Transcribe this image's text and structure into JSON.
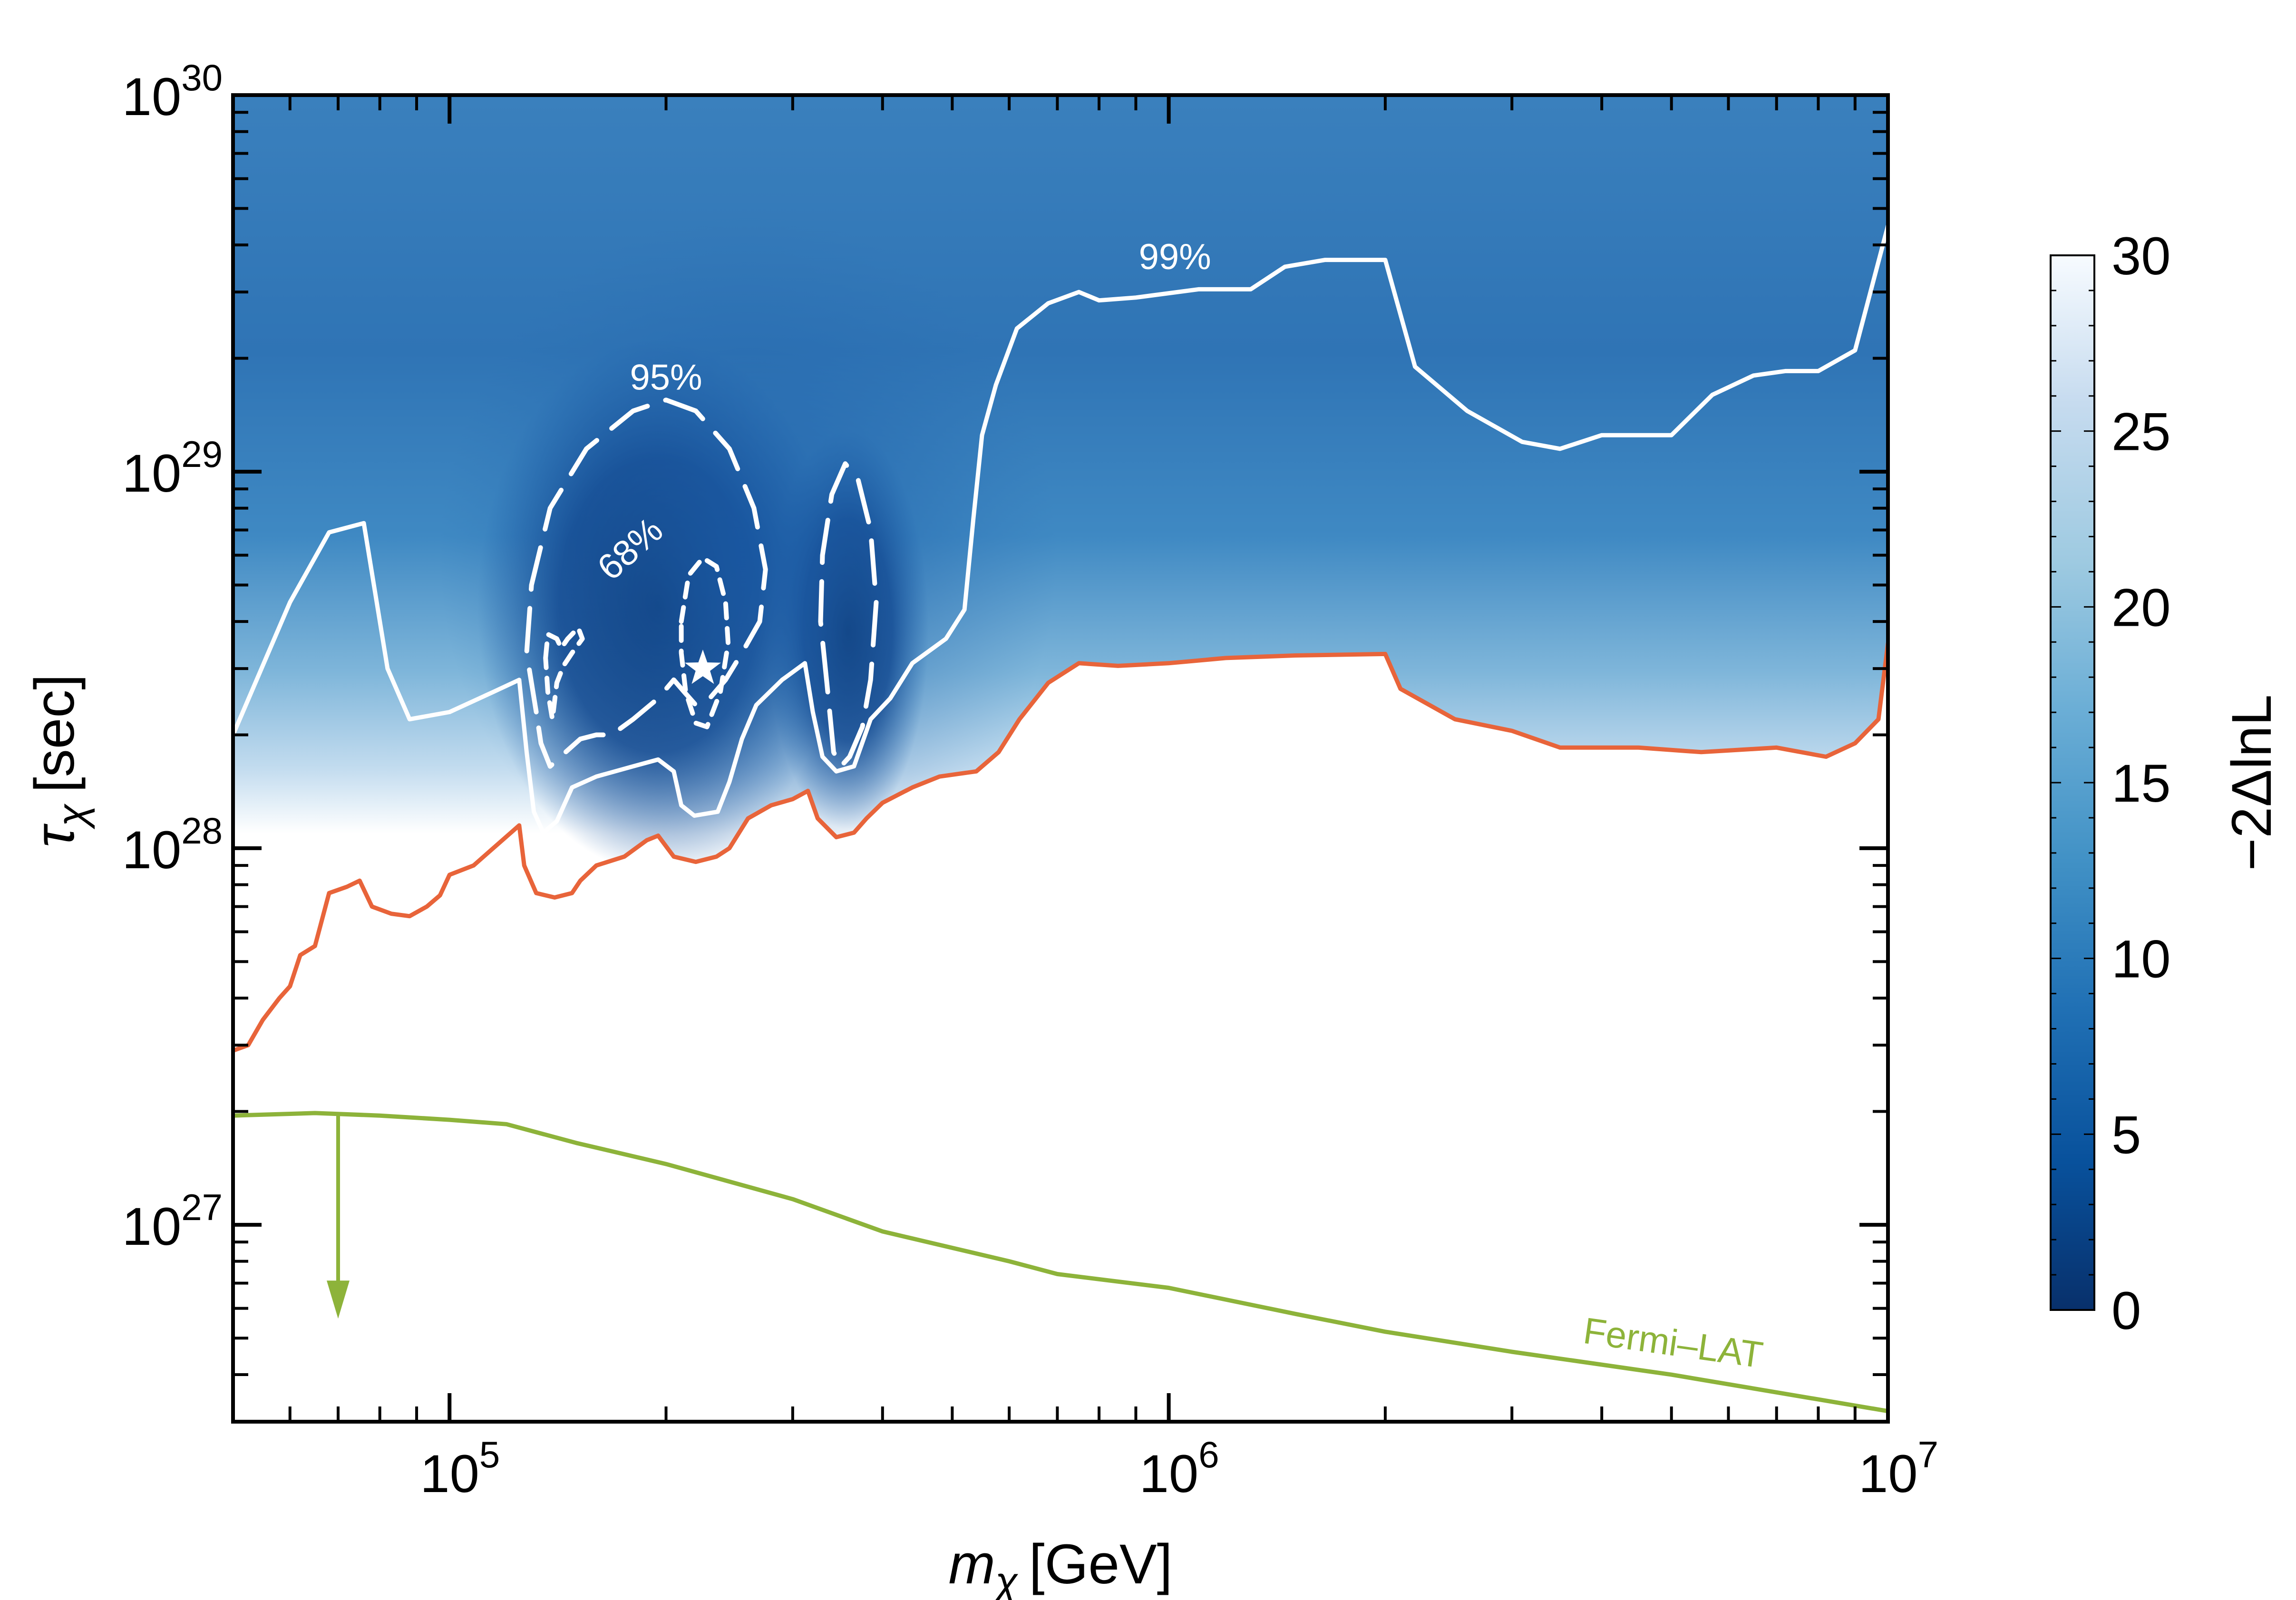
{
  "chart_data": {
    "type": "heatmap",
    "xlabel": {
      "var": "m",
      "sub": "χ",
      "unit": "[GeV]"
    },
    "ylabel": {
      "var": "τ",
      "sub": "χ",
      "unit": "[sec]"
    },
    "x_scale": "log",
    "y_scale": "log",
    "xlim": [
      50000,
      10000000
    ],
    "ylim": [
      3e+26,
      1e+30
    ],
    "x_ticks": [
      {
        "value": 100000,
        "base": "10",
        "exp": "5"
      },
      {
        "value": 1000000,
        "base": "10",
        "exp": "6"
      },
      {
        "value": 10000000,
        "base": "10",
        "exp": "7"
      }
    ],
    "y_ticks": [
      {
        "value": 1e+27,
        "base": "10",
        "exp": "27"
      },
      {
        "value": 1e+28,
        "base": "10",
        "exp": "28"
      },
      {
        "value": 1e+29,
        "base": "10",
        "exp": "29"
      },
      {
        "value": 1e+30,
        "base": "10",
        "exp": "30"
      }
    ],
    "colorbar": {
      "label": "−2ΔlnL",
      "min": 0,
      "max": 30,
      "ticks": [
        "0",
        "5",
        "10",
        "15",
        "20",
        "25",
        "30"
      ],
      "colors": [
        "#08306b",
        "#08519c",
        "#2171b5",
        "#4292c6",
        "#6baed6",
        "#9ecae1",
        "#c6dbef",
        "#f7fbff"
      ]
    },
    "series": [
      {
        "name": "99% boundary",
        "color": "#ffffff",
        "style": "solid",
        "points": [
          [
            50000,
            2e+28
          ],
          [
            60000,
            4.5e+28
          ],
          [
            68000,
            6.9e+28
          ],
          [
            76000,
            7.3e+28
          ],
          [
            82000,
            3e+28
          ],
          [
            88000,
            2.2e+28
          ],
          [
            100000,
            2.3e+28
          ],
          [
            115000,
            2.6e+28
          ],
          [
            125000,
            2.8e+28
          ],
          [
            128000,
            1.8e+28
          ],
          [
            131000,
            1.25e+28
          ],
          [
            135000,
            1.1e+28
          ],
          [
            141000,
            1.18e+28
          ],
          [
            148000,
            1.45e+28
          ],
          [
            160000,
            1.55e+28
          ],
          [
            180000,
            1.65e+28
          ],
          [
            195000,
            1.72e+28
          ],
          [
            205000,
            1.6e+28
          ],
          [
            210000,
            1.3e+28
          ],
          [
            219000,
            1.22e+28
          ],
          [
            236000,
            1.25e+28
          ],
          [
            245000,
            1.5e+28
          ],
          [
            255000,
            1.95e+28
          ],
          [
            267000,
            2.4e+28
          ],
          [
            290000,
            2.8e+28
          ],
          [
            312000,
            3.1e+28
          ],
          [
            320000,
            2.3e+28
          ],
          [
            330000,
            1.75e+28
          ],
          [
            345000,
            1.6e+28
          ],
          [
            365000,
            1.65e+28
          ],
          [
            385000,
            2.2e+28
          ],
          [
            410000,
            2.5e+28
          ],
          [
            440000,
            3.1e+28
          ],
          [
            490000,
            3.6e+28
          ],
          [
            520000,
            4.3e+28
          ],
          [
            535000,
            7.5e+28
          ],
          [
            550000,
            1.25e+29
          ],
          [
            575000,
            1.7e+29
          ],
          [
            615000,
            2.4e+29
          ],
          [
            680000,
            2.8e+29
          ],
          [
            750000,
            3e+29
          ],
          [
            800000,
            2.85e+29
          ],
          [
            900000,
            2.9e+29
          ],
          [
            1100000,
            3.05e+29
          ],
          [
            1300000,
            3.05e+29
          ],
          [
            1450000,
            3.5e+29
          ],
          [
            1650000,
            3.65e+29
          ],
          [
            2000000,
            3.65e+29
          ],
          [
            2200000,
            1.9e+29
          ],
          [
            2600000,
            1.45e+29
          ],
          [
            3100000,
            1.2e+29
          ],
          [
            3500000,
            1.15e+29
          ],
          [
            4000000,
            1.25e+29
          ],
          [
            5000000,
            1.25e+29
          ],
          [
            5700000,
            1.6e+29
          ],
          [
            6500000,
            1.8e+29
          ],
          [
            7200000,
            1.85e+29
          ],
          [
            8000000,
            1.85e+29
          ],
          [
            9000000,
            2.1e+29
          ],
          [
            10000000,
            4.5e+29
          ]
        ]
      },
      {
        "name": "likelihood edge",
        "color": "#e8643a",
        "style": "solid",
        "points": [
          [
            50000,
            2.9e+27
          ],
          [
            52500,
            3e+27
          ],
          [
            55000,
            3.5e+27
          ],
          [
            58000,
            4e+27
          ],
          [
            60000,
            4.3e+27
          ],
          [
            62000,
            5.2e+27
          ],
          [
            65000,
            5.5e+27
          ],
          [
            68000,
            7.6e+27
          ],
          [
            72000,
            7.9e+27
          ],
          [
            75000,
            8.2e+27
          ],
          [
            78000,
            7e+27
          ],
          [
            83000,
            6.7e+27
          ],
          [
            88000,
            6.6e+27
          ],
          [
            93000,
            7e+27
          ],
          [
            97000,
            7.5e+27
          ],
          [
            100000,
            8.5e+27
          ],
          [
            108000,
            9e+27
          ],
          [
            115000,
            1e+28
          ],
          [
            125000,
            1.15e+28
          ],
          [
            127000,
            9e+27
          ],
          [
            132000,
            7.6e+27
          ],
          [
            140000,
            7.4e+27
          ],
          [
            148000,
            7.6e+27
          ],
          [
            152000,
            8.2e+27
          ],
          [
            160000,
            9e+27
          ],
          [
            175000,
            9.5e+27
          ],
          [
            188000,
            1.05e+28
          ],
          [
            195000,
            1.08e+28
          ],
          [
            205000,
            9.5e+27
          ],
          [
            220000,
            9.2e+27
          ],
          [
            235000,
            9.5e+27
          ],
          [
            245000,
            1e+28
          ],
          [
            260000,
            1.2e+28
          ],
          [
            280000,
            1.3e+28
          ],
          [
            300000,
            1.35e+28
          ],
          [
            315000,
            1.42e+28
          ],
          [
            325000,
            1.2e+28
          ],
          [
            345000,
            1.07e+28
          ],
          [
            365000,
            1.1e+28
          ],
          [
            380000,
            1.2e+28
          ],
          [
            400000,
            1.32e+28
          ],
          [
            440000,
            1.45e+28
          ],
          [
            480000,
            1.55e+28
          ],
          [
            540000,
            1.6e+28
          ],
          [
            580000,
            1.8e+28
          ],
          [
            620000,
            2.2e+28
          ],
          [
            680000,
            2.75e+28
          ],
          [
            750000,
            3.1e+28
          ],
          [
            850000,
            3.05e+28
          ],
          [
            1000000,
            3.1e+28
          ],
          [
            1200000,
            3.2e+28
          ],
          [
            1500000,
            3.25e+28
          ],
          [
            2000000,
            3.28e+28
          ],
          [
            2100000,
            2.65e+28
          ],
          [
            2500000,
            2.2e+28
          ],
          [
            3000000,
            2.05e+28
          ],
          [
            3500000,
            1.85e+28
          ],
          [
            4500000,
            1.85e+28
          ],
          [
            5500000,
            1.8e+28
          ],
          [
            7000000,
            1.85e+28
          ],
          [
            8200000,
            1.75e+28
          ],
          [
            9000000,
            1.9e+28
          ],
          [
            9700000,
            2.2e+28
          ],
          [
            10000000,
            3.5e+28
          ]
        ]
      },
      {
        "name": "Fermi-LAT",
        "color": "#8db33a",
        "style": "solid",
        "points": [
          [
            50000,
            1.95e+27
          ],
          [
            65000,
            1.98e+27
          ],
          [
            80000,
            1.95e+27
          ],
          [
            100000,
            1.9e+27
          ],
          [
            120000,
            1.85e+27
          ],
          [
            150000,
            1.65e+27
          ],
          [
            200000,
            1.45e+27
          ],
          [
            300000,
            1.17e+27
          ],
          [
            400000,
            9.6e+26
          ],
          [
            600000,
            8e+26
          ],
          [
            700000,
            7.4e+26
          ],
          [
            1000000,
            6.8e+26
          ],
          [
            1500000,
            5.8e+26
          ],
          [
            2000000,
            5.2e+26
          ],
          [
            3000000,
            4.6e+26
          ],
          [
            5000000,
            4e+26
          ],
          [
            10000000,
            3.2e+26
          ]
        ]
      },
      {
        "name": "95% contour left",
        "color": "#ffffff",
        "style": "long-dash",
        "points": [
          [
            132000,
            2.3e+28
          ],
          [
            128000,
            3.3e+28
          ],
          [
            130000,
            5e+28
          ],
          [
            138000,
            8e+28
          ],
          [
            155000,
            1.15e+29
          ],
          [
            180000,
            1.45e+29
          ],
          [
            200000,
            1.55e+29
          ],
          [
            220000,
            1.45e+29
          ],
          [
            245000,
            1.15e+29
          ],
          [
            265000,
            8e+28
          ],
          [
            275000,
            5.5e+28
          ],
          [
            270000,
            4e+28
          ],
          [
            255000,
            3.3e+28
          ],
          [
            242000,
            2.8e+28
          ],
          [
            230000,
            2.5e+28
          ],
          [
            220000,
            2.4e+28
          ],
          [
            212000,
            2.6e+28
          ],
          [
            205000,
            2.8e+28
          ],
          [
            195000,
            2.5e+28
          ],
          [
            180000,
            2.2e+28
          ],
          [
            168000,
            2e+28
          ],
          [
            160000,
            2e+28
          ],
          [
            152000,
            1.95e+28
          ],
          [
            145000,
            1.8e+28
          ],
          [
            138000,
            1.65e+28
          ],
          [
            134000,
            1.9e+28
          ],
          [
            132000,
            2.3e+28
          ]
        ]
      },
      {
        "name": "95% contour right",
        "color": "#ffffff",
        "style": "long-dash",
        "points": [
          [
            335000,
            2.7e+28
          ],
          [
            328000,
            4e+28
          ],
          [
            330000,
            6e+28
          ],
          [
            340000,
            8.7e+28
          ],
          [
            355000,
            1.05e+29
          ],
          [
            370000,
            9.5e+28
          ],
          [
            385000,
            7e+28
          ],
          [
            392000,
            4.5e+28
          ],
          [
            385000,
            2.8e+28
          ],
          [
            375000,
            2.1e+28
          ],
          [
            360000,
            1.75e+28
          ],
          [
            350000,
            1.65e+28
          ],
          [
            342000,
            1.8e+28
          ],
          [
            335000,
            2.7e+28
          ]
        ]
      },
      {
        "name": "68% contour main",
        "color": "#ffffff",
        "style": "short-dash",
        "points": [
          [
            210000,
            4e+28
          ],
          [
            215000,
            5.3e+28
          ],
          [
            225000,
            5.9e+28
          ],
          [
            235000,
            5.6e+28
          ],
          [
            242000,
            4.5e+28
          ],
          [
            244000,
            3.5e+28
          ],
          [
            238000,
            2.6e+28
          ],
          [
            228000,
            2.1e+28
          ],
          [
            220000,
            2.15e+28
          ],
          [
            213000,
            2.6e+28
          ],
          [
            210000,
            3.3e+28
          ],
          [
            210000,
            4e+28
          ]
        ]
      },
      {
        "name": "68% contour small",
        "color": "#ffffff",
        "style": "short-dash",
        "points": [
          [
            136000,
            3.2e+28
          ],
          [
            137000,
            3.7e+28
          ],
          [
            141000,
            3.6e+28
          ],
          [
            143000,
            3.4e+28
          ],
          [
            146000,
            3.6e+28
          ],
          [
            151000,
            3.85e+28
          ],
          [
            153000,
            3.6e+28
          ],
          [
            148000,
            3.3e+28
          ],
          [
            144000,
            3.05e+28
          ],
          [
            141000,
            2.75e+28
          ],
          [
            139000,
            2.2e+28
          ],
          [
            137000,
            2.6e+28
          ],
          [
            136000,
            3.2e+28
          ]
        ]
      }
    ],
    "best_fit": {
      "x": 225000,
      "y": 3e+28,
      "marker": "star",
      "color": "#ffffff"
    },
    "annotations": [
      {
        "text": "99%",
        "x": 1020000,
        "y": 3.45e+29,
        "color": "#ffffff"
      },
      {
        "text": "95%",
        "x": 200000,
        "y": 1.65e+29,
        "color": "#ffffff"
      },
      {
        "text": "68%",
        "x": 183000,
        "y": 5.9e+28,
        "color": "#ffffff",
        "rotation": -42
      },
      {
        "text": "Fermi–LAT",
        "x": 5000000,
        "y": 4.5e+26,
        "color": "#8db33a",
        "rotation": 8
      }
    ],
    "arrow": {
      "x": 70000,
      "y_from": 1.95e+27,
      "y_to": 5.8e+26,
      "color": "#8db33a"
    }
  }
}
